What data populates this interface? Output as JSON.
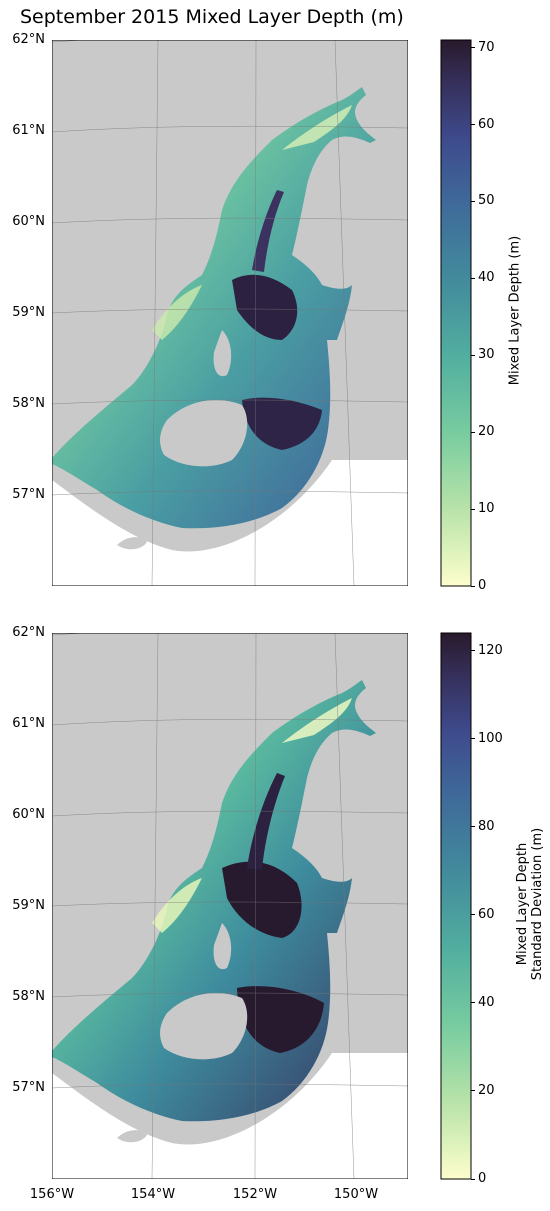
{
  "figure": {
    "title": "September 2015 Mixed Layer Depth (m)"
  },
  "panels": [
    {
      "id": "mld",
      "lat_labels": [
        "62°N",
        "61°N",
        "60°N",
        "59°N",
        "58°N",
        "57°N"
      ],
      "lon_labels": [],
      "colorbar": {
        "label_lines": [
          "Mixed Layer Depth (m)"
        ],
        "ticks": [
          "0",
          "10",
          "20",
          "30",
          "40",
          "50",
          "60",
          "70"
        ],
        "range": [
          0,
          71
        ],
        "colormap": "deep (light yellow to dark purple)"
      }
    },
    {
      "id": "mld-std",
      "lat_labels": [
        "62°N",
        "61°N",
        "60°N",
        "59°N",
        "58°N",
        "57°N"
      ],
      "lon_labels": [
        "156°W",
        "154°W",
        "152°W",
        "150°W"
      ],
      "colorbar": {
        "label_lines": [
          "Mixed Layer Depth",
          "Standard Deviation (m)"
        ],
        "ticks": [
          "0",
          "20",
          "40",
          "60",
          "80",
          "100",
          "120"
        ],
        "range": [
          0,
          124
        ],
        "colormap": "deep (light yellow to dark purple)"
      }
    }
  ],
  "colors": {
    "land": "#c9c9c9",
    "cmap_low": "#fdfecc",
    "cmap_mid": "#5bbf9d",
    "cmap_high": "#281a2c"
  }
}
